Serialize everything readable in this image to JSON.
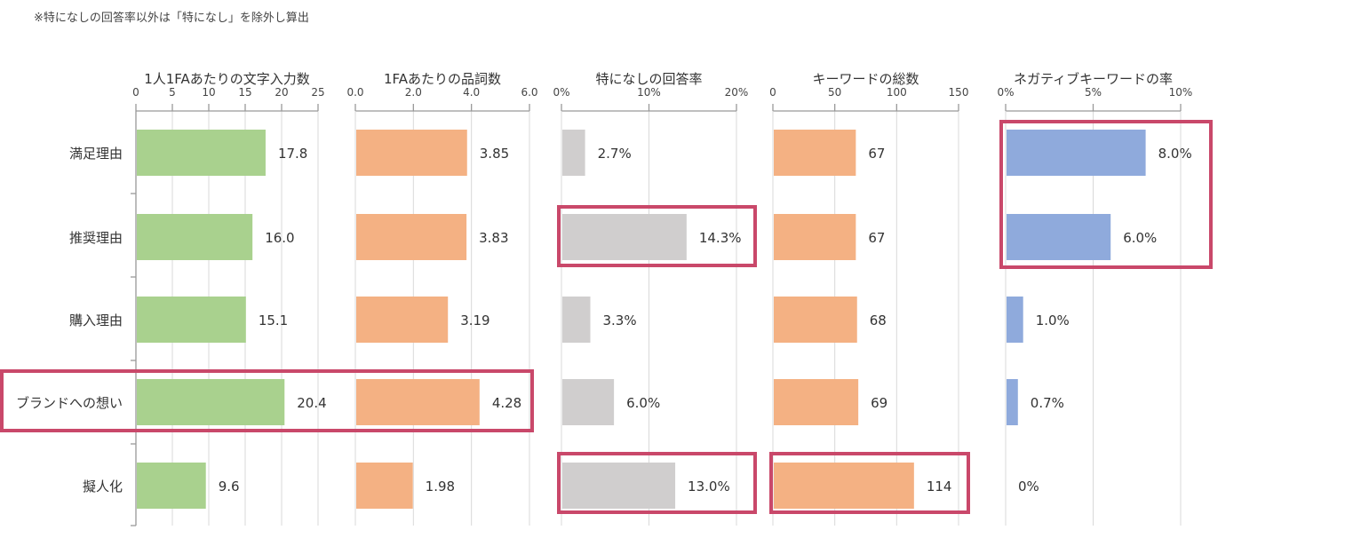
{
  "note": "※特になしの回答率以外は「特になし」を除外し算出",
  "chart_data": {
    "type": "bar",
    "orientation": "horizontal",
    "categories": [
      "満足理由",
      "推奨理由",
      "購入理由",
      "ブランドへの想い",
      "擬人化"
    ],
    "panels": [
      {
        "title": "1人1FAあたりの文字入力数",
        "xlim": [
          0,
          25
        ],
        "ticks": [
          0,
          5,
          10,
          15,
          20,
          25
        ],
        "tick_labels": [
          "0",
          "5",
          "10",
          "15",
          "20",
          "25"
        ],
        "values": [
          17.8,
          16.0,
          15.1,
          20.4,
          9.6
        ],
        "value_labels": [
          "17.8",
          "16.0",
          "15.1",
          "20.4",
          "9.6"
        ],
        "color": "#a9d18e"
      },
      {
        "title": "1FAあたりの品詞数",
        "xlim": [
          0,
          6
        ],
        "ticks": [
          0,
          2,
          4,
          6
        ],
        "tick_labels": [
          "0.0",
          "2.0",
          "4.0",
          "6.0"
        ],
        "values": [
          3.85,
          3.83,
          3.19,
          4.28,
          1.98
        ],
        "value_labels": [
          "3.85",
          "3.83",
          "3.19",
          "4.28",
          "1.98"
        ],
        "color": "#f4b183"
      },
      {
        "title": "特になしの回答率",
        "xlim": [
          0,
          20
        ],
        "ticks": [
          0,
          10,
          20
        ],
        "tick_labels": [
          "0%",
          "10%",
          "20%"
        ],
        "values": [
          2.7,
          14.3,
          3.3,
          6.0,
          13.0
        ],
        "value_labels": [
          "2.7%",
          "14.3%",
          "3.3%",
          "6.0%",
          "13.0%"
        ],
        "color": "#d0cece"
      },
      {
        "title": "キーワードの総数",
        "xlim": [
          0,
          150
        ],
        "ticks": [
          0,
          50,
          100,
          150
        ],
        "tick_labels": [
          "0",
          "50",
          "100",
          "150"
        ],
        "values": [
          67,
          67,
          68,
          69,
          114
        ],
        "value_labels": [
          "67",
          "67",
          "68",
          "69",
          "114"
        ],
        "color": "#f4b183"
      },
      {
        "title": "ネガティブキーワードの率",
        "xlim": [
          0,
          10
        ],
        "ticks": [
          0,
          5,
          10
        ],
        "tick_labels": [
          "0%",
          "5%",
          "10%"
        ],
        "values": [
          8.0,
          6.0,
          1.0,
          0.7,
          0
        ],
        "value_labels": [
          "8.0%",
          "6.0%",
          "1.0%",
          "0.7%",
          "0%"
        ],
        "color": "#8faadc"
      }
    ],
    "highlights": [
      {
        "type": "row",
        "category": "ブランドへの想い",
        "panels": [
          0,
          1
        ]
      },
      {
        "type": "cell",
        "panel": 2,
        "category": "推奨理由"
      },
      {
        "type": "cell",
        "panel": 2,
        "category": "擬人化"
      },
      {
        "type": "cell",
        "panel": 3,
        "category": "擬人化"
      },
      {
        "type": "cells",
        "panel": 4,
        "categories": [
          "満足理由",
          "推奨理由"
        ]
      }
    ],
    "highlight_color": "#c9486a",
    "grid": true
  }
}
